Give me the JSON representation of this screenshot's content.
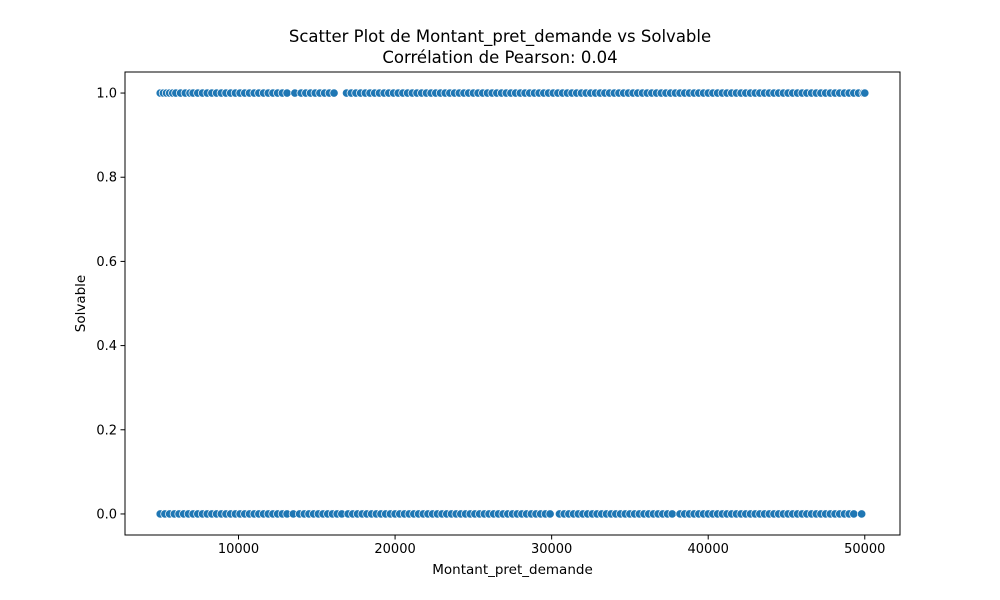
{
  "chart_data": {
    "type": "scatter",
    "title_lines": [
      "Scatter Plot de Montant_pret_demande vs Solvable",
      "Corrélation de Pearson: 0.04"
    ],
    "xlabel": "Montant_pret_demande",
    "ylabel": "Solvable",
    "xlim": [
      2750,
      52250
    ],
    "ylim": [
      -0.05,
      1.05
    ],
    "x_ticks": [
      {
        "value": 10000,
        "label": "10000"
      },
      {
        "value": 20000,
        "label": "20000"
      },
      {
        "value": 30000,
        "label": "30000"
      },
      {
        "value": 40000,
        "label": "40000"
      },
      {
        "value": 50000,
        "label": "50000"
      }
    ],
    "y_ticks": [
      {
        "value": 0.0,
        "label": "0.0"
      },
      {
        "value": 0.2,
        "label": "0.2"
      },
      {
        "value": 0.4,
        "label": "0.4"
      },
      {
        "value": 0.6,
        "label": "0.6"
      },
      {
        "value": 0.8,
        "label": "0.8"
      },
      {
        "value": 1.0,
        "label": "1.0"
      }
    ],
    "grid": false,
    "marker_color": "#1f77b4",
    "marker_edge_color": "#ffffff",
    "series": [
      {
        "y": 1,
        "x": [
          5000,
          5200,
          5400,
          5600,
          5800,
          6000,
          6300,
          6600,
          6900,
          7100,
          7400,
          7700,
          8000,
          8300,
          8600,
          8900,
          9200,
          9500,
          9800,
          10100,
          10400,
          10700,
          11000,
          11300,
          11600,
          11900,
          12200,
          12500,
          12800,
          13100,
          13600,
          14000,
          14300,
          14600,
          14900,
          15200,
          15500,
          15800,
          16100,
          16900,
          17200,
          17500,
          17800,
          18100,
          18400,
          18700,
          19000,
          19300,
          19600,
          19900,
          20200,
          20500,
          20800,
          21100,
          21400,
          21700,
          22000,
          22300,
          22600,
          22900,
          23200,
          23500,
          23800,
          24100,
          24400,
          24700,
          25000,
          25300,
          25600,
          25900,
          26200,
          26500,
          26800,
          27100,
          27400,
          27700,
          28000,
          28300,
          28600,
          28900,
          29200,
          29500,
          29800,
          30100,
          30400,
          30700,
          31000,
          31300,
          31600,
          31900,
          32200,
          32500,
          32800,
          33100,
          33400,
          33700,
          34000,
          34300,
          34600,
          34900,
          35200,
          35500,
          35800,
          36100,
          36400,
          36700,
          37000,
          37300,
          37600,
          37900,
          38200,
          38500,
          38800,
          39100,
          39400,
          39700,
          40000,
          40300,
          40600,
          40900,
          41200,
          41500,
          41800,
          42100,
          42400,
          42700,
          43000,
          43300,
          43600,
          43900,
          44200,
          44500,
          44800,
          45100,
          45400,
          45700,
          46000,
          46300,
          46600,
          46900,
          47200,
          47500,
          47800,
          48100,
          48400,
          48700,
          49000,
          49300,
          49600,
          49900,
          50000
        ]
      },
      {
        "y": 0,
        "x": [
          5000,
          5300,
          5600,
          5900,
          6200,
          6500,
          6800,
          7100,
          7400,
          7700,
          8000,
          8300,
          8600,
          8900,
          9200,
          9500,
          9800,
          10100,
          10400,
          10700,
          11000,
          11300,
          11600,
          11900,
          12200,
          12500,
          12800,
          13100,
          13500,
          13900,
          14200,
          14500,
          14800,
          15100,
          15400,
          15700,
          16000,
          16300,
          16600,
          17000,
          17300,
          17600,
          17900,
          18200,
          18500,
          18800,
          19100,
          19400,
          19700,
          20000,
          20300,
          20600,
          20900,
          21200,
          21500,
          21800,
          22100,
          22400,
          22700,
          23000,
          23300,
          23600,
          23900,
          24200,
          24500,
          24800,
          25100,
          25400,
          25700,
          26000,
          26300,
          26600,
          26900,
          27200,
          27500,
          27800,
          28100,
          28400,
          28700,
          29000,
          29300,
          29600,
          29900,
          30500,
          30800,
          31100,
          31400,
          31700,
          32000,
          32300,
          32600,
          32900,
          33200,
          33500,
          33800,
          34100,
          34400,
          34700,
          35000,
          35300,
          35600,
          35900,
          36200,
          36500,
          36800,
          37100,
          37400,
          37700,
          38200,
          38500,
          38800,
          39100,
          39400,
          39700,
          40000,
          40300,
          40600,
          40900,
          41200,
          41500,
          41800,
          42100,
          42400,
          42700,
          43000,
          43300,
          43600,
          43900,
          44200,
          44500,
          44800,
          45100,
          45400,
          45700,
          46000,
          46300,
          46600,
          46900,
          47200,
          47500,
          47800,
          48100,
          48400,
          48700,
          49000,
          49300,
          49800
        ]
      }
    ]
  }
}
